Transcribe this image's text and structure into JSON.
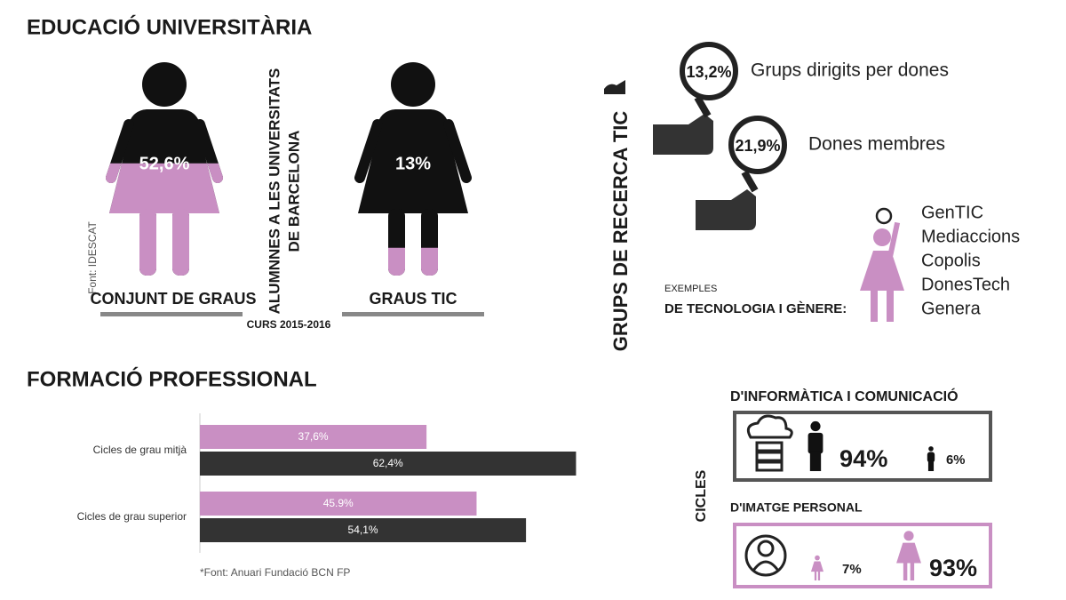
{
  "education": {
    "title": "EDUCACIÓ UNIVERSITÀRIA",
    "source": "Font: IDESCAT",
    "vertical_label": [
      "ALUMNNES A LES UNIVERSITATS",
      "DE BARCELONA"
    ],
    "course": "CURS 2015-2016",
    "figures": [
      {
        "label": "CONJUNT DE GRAUS",
        "value": 52.6,
        "value_label": "52,6%"
      },
      {
        "label": "GRAUS TIC",
        "value": 13,
        "value_label": "13%"
      }
    ]
  },
  "research": {
    "title": "GRUPS DE RECERCA TIC",
    "stats": [
      {
        "value_label": "13,2%",
        "label": "Grups dirigits per dones"
      },
      {
        "value_label": "21,9%",
        "label": "Dones membres"
      }
    ],
    "examples_small": "EXEMPLES",
    "examples_title": "DE TECNOLOGIA I GÈNERE:",
    "examples": [
      "GenTIC",
      "Mediaccions",
      "Copolis",
      "DonesTech",
      "Genera"
    ]
  },
  "chart_data": {
    "type": "bar",
    "title": "FORMACIÓ PROFESSIONAL",
    "orientation": "horizontal",
    "categories": [
      "Cicles de grau mitjà",
      "Cicles de grau superior"
    ],
    "series": [
      {
        "color": "#c98fc3",
        "values": [
          37.6,
          45.9
        ],
        "value_labels": [
          "37,6%",
          "45.9%"
        ]
      },
      {
        "color": "#333333",
        "values": [
          62.4,
          54.1
        ],
        "value_labels": [
          "62,4%",
          "54,1%"
        ]
      }
    ],
    "xlim": [
      0,
      70
    ],
    "source": "*Font: Anuari Fundació BCN FP"
  },
  "cycles": {
    "title": "CICLES",
    "groups": [
      {
        "title": "D'INFORMÀTICA I COMUNICACIÓ",
        "items": [
          {
            "value": 94,
            "value_label": "94%"
          },
          {
            "value": 6,
            "value_label": "6%"
          }
        ]
      },
      {
        "title": "D'IMATGE PERSONAL",
        "items": [
          {
            "value": 7,
            "value_label": "7%"
          },
          {
            "value": 93,
            "value_label": "93%"
          }
        ]
      }
    ]
  }
}
